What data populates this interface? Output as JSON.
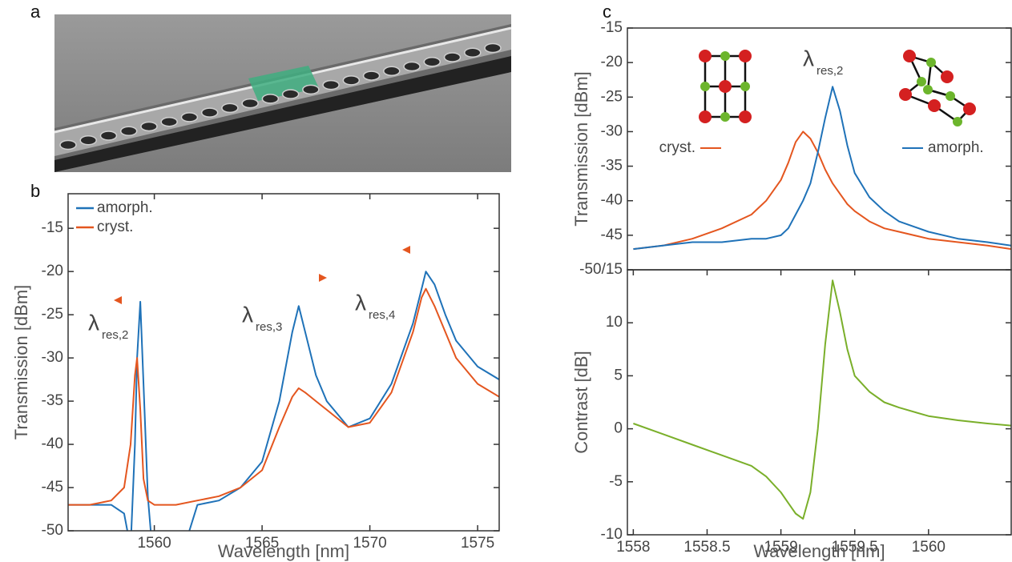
{
  "panel_labels": [
    "a",
    "b",
    "c"
  ],
  "chart_data": [
    {
      "type": "line",
      "xlabel": "Wavelength [nm]",
      "ylabel": "Transmission [dBm]",
      "xlim": [
        1556,
        1576
      ],
      "xticks": [
        1560,
        1565,
        1570,
        1575
      ],
      "ylim": [
        -50,
        -11
      ],
      "yticks": [
        -50,
        -45,
        -40,
        -35,
        -30,
        -25,
        -20,
        -15
      ],
      "legend": "upper left",
      "annotations": [
        {
          "symbol": "λ",
          "subscript": "res,2"
        },
        {
          "symbol": "λ",
          "subscript": "res,3"
        },
        {
          "symbol": "λ",
          "subscript": "res,4"
        }
      ],
      "x": [
        1556,
        1557,
        1558,
        1558.6,
        1558.9,
        1559.1,
        1559.2,
        1559.35,
        1559.5,
        1559.7,
        1560,
        1561,
        1562,
        1563,
        1564,
        1565,
        1565.8,
        1566.4,
        1566.7,
        1567,
        1567.5,
        1568,
        1569,
        1570,
        1571,
        1572,
        1572.4,
        1572.6,
        1573,
        1573.5,
        1574,
        1575,
        1576
      ],
      "series": [
        {
          "name": "amorph.",
          "color": "#1f72b8",
          "values": [
            -47,
            -47,
            -47,
            -48,
            -52,
            -40,
            -30,
            -23.5,
            -33,
            -46,
            -55,
            -55,
            -47,
            -46.5,
            -45,
            -42,
            -35,
            -27,
            -24,
            -27,
            -32,
            -35,
            -38,
            -37,
            -33,
            -26,
            -22,
            -20,
            -21.5,
            -25,
            -28,
            -31,
            -32.5
          ]
        },
        {
          "name": "cryst.",
          "color": "#e4561f",
          "values": [
            -47,
            -47,
            -46.5,
            -45,
            -40,
            -32,
            -30,
            -36,
            -44,
            -46.5,
            -47,
            -47,
            -46.5,
            -46,
            -45,
            -43,
            -38,
            -34.5,
            -33.5,
            -34,
            -35,
            -36,
            -38,
            -37.5,
            -34,
            -27,
            -23,
            -22,
            -24,
            -27,
            -30,
            -33,
            -34.5
          ]
        }
      ]
    },
    {
      "type": "line",
      "ylabel": "Transmission [dBm]",
      "xlim": [
        1557.96,
        1560.56
      ],
      "ylim": [
        -50,
        -15
      ],
      "yticks": [
        {
          "value": -50,
          "label": "-50/15"
        },
        -45,
        -40,
        -35,
        -30,
        -25,
        -20,
        -15
      ],
      "legend": "inline",
      "annotations": [
        {
          "symbol": "λ",
          "subscript": "res,2"
        }
      ],
      "x": [
        1558,
        1558.2,
        1558.4,
        1558.6,
        1558.8,
        1558.9,
        1559,
        1559.05,
        1559.1,
        1559.15,
        1559.2,
        1559.25,
        1559.3,
        1559.35,
        1559.4,
        1559.45,
        1559.5,
        1559.6,
        1559.7,
        1559.8,
        1560,
        1560.2,
        1560.4,
        1560.56
      ],
      "series": [
        {
          "name": "cryst.",
          "color": "#e4561f",
          "values": [
            -47,
            -46.5,
            -45.5,
            -44,
            -42,
            -40,
            -37,
            -34.5,
            -31.5,
            -30,
            -31,
            -33,
            -35.5,
            -37.5,
            -39,
            -40.5,
            -41.5,
            -43,
            -44,
            -44.5,
            -45.5,
            -46,
            -46.5,
            -47
          ]
        },
        {
          "name": "amorph.",
          "color": "#1f72b8",
          "values": [
            -47,
            -46.5,
            -46,
            -46,
            -45.5,
            -45.5,
            -45,
            -44,
            -42,
            -40,
            -37.5,
            -33,
            -28,
            -23.5,
            -27,
            -32,
            -36,
            -39.5,
            -41.5,
            -43,
            -44.5,
            -45.5,
            -46,
            -46.5
          ]
        }
      ]
    },
    {
      "type": "line",
      "xlabel": "Wavelength [nm]",
      "ylabel": "Contrast [dB]",
      "xlim": [
        1557.96,
        1560.56
      ],
      "xticks": [
        1558,
        1558.5,
        1559,
        1559.5,
        1560
      ],
      "ylim": [
        -10,
        15
      ],
      "yticks": [
        -10,
        -5,
        0,
        5,
        10
      ],
      "x": [
        1558,
        1558.2,
        1558.4,
        1558.6,
        1558.8,
        1558.9,
        1559,
        1559.05,
        1559.1,
        1559.15,
        1559.2,
        1559.25,
        1559.3,
        1559.35,
        1559.4,
        1559.45,
        1559.5,
        1559.6,
        1559.7,
        1559.8,
        1560,
        1560.2,
        1560.4,
        1560.56
      ],
      "series": [
        {
          "color": "#7aaf2a",
          "values": [
            0.5,
            -0.5,
            -1.5,
            -2.5,
            -3.5,
            -4.5,
            -6,
            -7,
            -8,
            -8.5,
            -6,
            0,
            8,
            14,
            11,
            7.5,
            5,
            3.5,
            2.5,
            2,
            1.2,
            0.8,
            0.5,
            0.3
          ]
        }
      ]
    }
  ]
}
